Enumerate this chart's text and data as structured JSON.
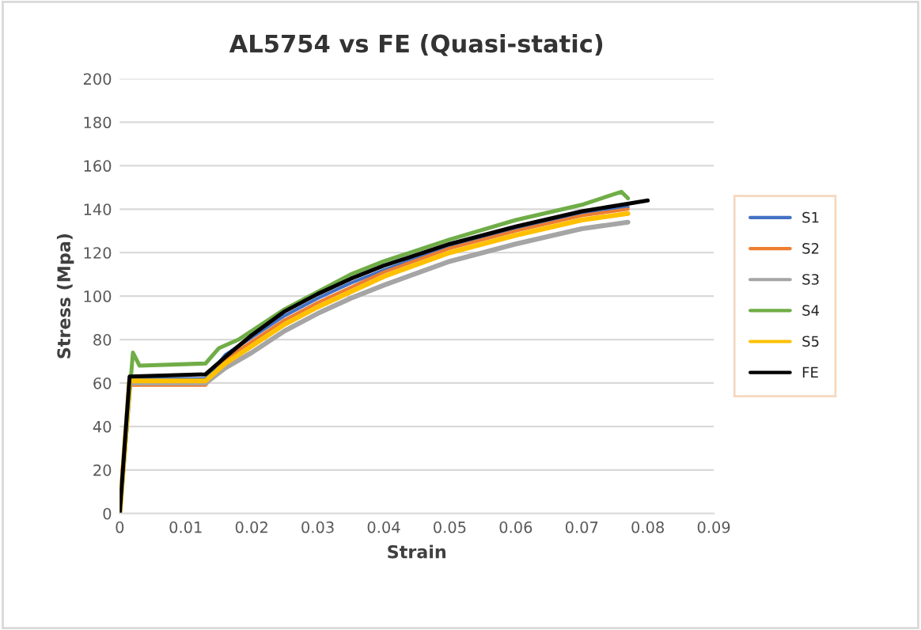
{
  "chart_data": {
    "type": "line",
    "title": "AL5754 vs FE (Quasi-static)",
    "xlabel": "Strain",
    "ylabel": "Stress (Mpa)",
    "xlim": [
      0,
      0.09
    ],
    "xticks": [
      0,
      0.01,
      0.02,
      0.03,
      0.04,
      0.05,
      0.06,
      0.07,
      0.08,
      0.09
    ],
    "ylim": [
      0,
      200
    ],
    "yticks": [
      0,
      20,
      40,
      60,
      80,
      100,
      120,
      140,
      160,
      180,
      200
    ],
    "grid": "y",
    "legend": "right",
    "marker": "none",
    "line_style": "solid",
    "series": [
      {
        "name": "S1",
        "color": "#4472c4",
        "x": [
          0,
          0.0015,
          0.013,
          0.016,
          0.02,
          0.025,
          0.03,
          0.035,
          0.04,
          0.05,
          0.06,
          0.07,
          0.077
        ],
        "values": [
          0,
          62,
          62,
          73,
          81,
          91,
          99,
          106,
          112,
          123,
          131,
          138,
          141
        ]
      },
      {
        "name": "S2",
        "color": "#ed7d31",
        "x": [
          0,
          0.0015,
          0.013,
          0.016,
          0.02,
          0.025,
          0.03,
          0.035,
          0.04,
          0.05,
          0.06,
          0.07,
          0.077
        ],
        "values": [
          0,
          59,
          59,
          71,
          79,
          89,
          97,
          104,
          111,
          122,
          130,
          137,
          140
        ]
      },
      {
        "name": "S3",
        "color": "#a5a5a5",
        "x": [
          0,
          0.0015,
          0.013,
          0.016,
          0.02,
          0.025,
          0.03,
          0.035,
          0.04,
          0.05,
          0.06,
          0.07,
          0.077
        ],
        "values": [
          0,
          60,
          60,
          67,
          74,
          84,
          92,
          99,
          105,
          116,
          124,
          131,
          134
        ]
      },
      {
        "name": "S4",
        "color": "#70ad47",
        "x": [
          0,
          0.002,
          0.003,
          0.013,
          0.015,
          0.018,
          0.02,
          0.025,
          0.03,
          0.035,
          0.04,
          0.05,
          0.06,
          0.07,
          0.076,
          0.077
        ],
        "values": [
          0,
          74,
          68,
          69,
          76,
          80,
          84,
          94,
          102,
          110,
          116,
          126,
          135,
          142,
          148,
          145
        ]
      },
      {
        "name": "S5",
        "color": "#ffc000",
        "x": [
          0,
          0.0015,
          0.013,
          0.016,
          0.02,
          0.025,
          0.03,
          0.035,
          0.04,
          0.05,
          0.06,
          0.07,
          0.077
        ],
        "values": [
          0,
          61,
          61,
          69,
          77,
          87,
          95,
          102,
          109,
          120,
          128,
          135,
          138
        ]
      },
      {
        "name": "FE",
        "color": "#000000",
        "x": [
          0,
          0.0015,
          0.013,
          0.016,
          0.02,
          0.025,
          0.03,
          0.035,
          0.04,
          0.05,
          0.06,
          0.07,
          0.08
        ],
        "values": [
          0,
          63,
          64,
          72,
          82,
          93,
          101,
          108,
          114,
          124,
          132,
          139,
          144
        ]
      }
    ]
  }
}
